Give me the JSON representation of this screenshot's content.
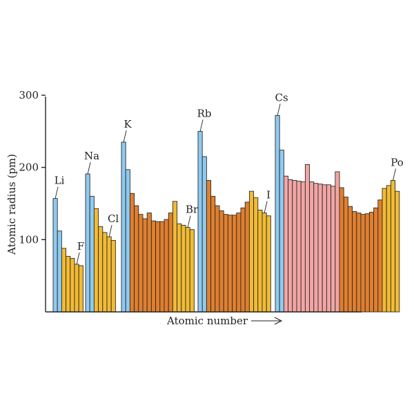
{
  "chart_data": {
    "type": "bar",
    "title": "",
    "xlabel": "Atomic number",
    "ylabel": "Atomic radius (pm)",
    "ylim": [
      0,
      300
    ],
    "yticks": [
      100,
      200,
      300
    ],
    "grid": false,
    "legend": "none",
    "colors": {
      "s_block": "#8fcaf0",
      "p_block": "#f2bb33",
      "d_block": "#e07f2e",
      "f_block": "#f3a5a3"
    },
    "periods": [
      {
        "blocks": [
          "s",
          "s",
          "p",
          "p",
          "p",
          "p",
          "p"
        ],
        "values": [
          157,
          112,
          88,
          77,
          74,
          66,
          64
        ]
      },
      {
        "blocks": [
          "s",
          "s",
          "p",
          "p",
          "p",
          "p",
          "p"
        ],
        "values": [
          191,
          160,
          143,
          118,
          110,
          104,
          99
        ]
      },
      {
        "blocks": [
          "s",
          "s",
          "d",
          "d",
          "d",
          "d",
          "d",
          "d",
          "d",
          "d",
          "d",
          "d",
          "p",
          "p",
          "p",
          "p",
          "p"
        ],
        "values": [
          235,
          197,
          164,
          147,
          135,
          129,
          137,
          126,
          125,
          125,
          128,
          137,
          153,
          122,
          120,
          117,
          114
        ]
      },
      {
        "blocks": [
          "s",
          "s",
          "d",
          "d",
          "d",
          "d",
          "d",
          "d",
          "d",
          "d",
          "d",
          "d",
          "p",
          "p",
          "p",
          "p",
          "p"
        ],
        "values": [
          250,
          215,
          182,
          160,
          147,
          140,
          135,
          134,
          134,
          137,
          144,
          152,
          167,
          158,
          141,
          137,
          133
        ]
      },
      {
        "blocks": [
          "s",
          "s",
          "f",
          "f",
          "f",
          "f",
          "f",
          "f",
          "f",
          "f",
          "f",
          "f",
          "f",
          "f",
          "f",
          "d",
          "d",
          "d",
          "d",
          "d",
          "d",
          "d",
          "d",
          "d",
          "d",
          "p",
          "p",
          "p",
          "p"
        ],
        "values": [
          272,
          224,
          188,
          183,
          182,
          181,
          180,
          204,
          180,
          178,
          177,
          176,
          176,
          174,
          194,
          172,
          159,
          146,
          139,
          137,
          135,
          136,
          138,
          144,
          155,
          171,
          175,
          182,
          167
        ]
      }
    ],
    "element_labels": [
      {
        "text": "Li",
        "period": 0,
        "index": 0
      },
      {
        "text": "F",
        "period": 0,
        "index": 5
      },
      {
        "text": "Na",
        "period": 1,
        "index": 0
      },
      {
        "text": "Cl",
        "period": 1,
        "index": 5
      },
      {
        "text": "K",
        "period": 2,
        "index": 0
      },
      {
        "text": "Br",
        "period": 2,
        "index": 15
      },
      {
        "text": "Rb",
        "period": 3,
        "index": 0
      },
      {
        "text": "I",
        "period": 3,
        "index": 15
      },
      {
        "text": "Cs",
        "period": 4,
        "index": 0
      },
      {
        "text": "Po",
        "period": 4,
        "index": 27
      }
    ]
  }
}
